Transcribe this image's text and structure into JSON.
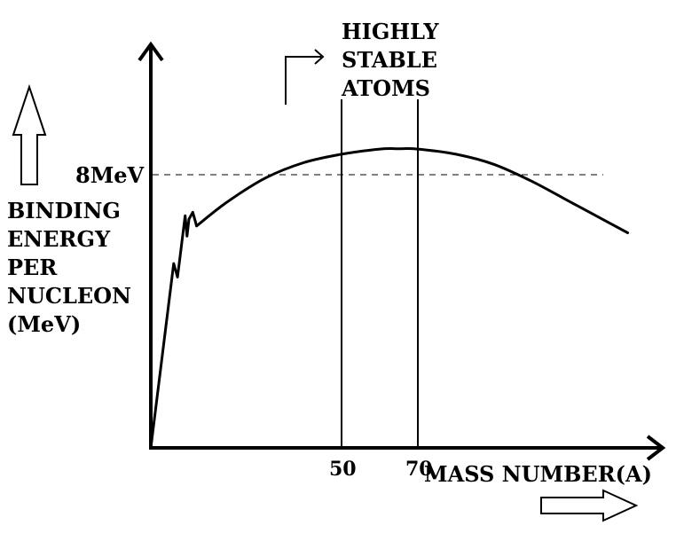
{
  "chart_data": {
    "type": "line",
    "xlabel": "MASS NUMBER(A)",
    "ylabel": [
      "BINDING",
      "ENERGY",
      "PER",
      "NUCLEON",
      "(MeV)"
    ],
    "reference_line": {
      "y": 8,
      "label": "8MeV",
      "style": "dashed"
    },
    "vertical_markers": [
      {
        "x": 50,
        "label": "50"
      },
      {
        "x": 70,
        "label": "70"
      }
    ],
    "annotation": [
      "HIGHLY",
      "STABLE",
      "ATOMS"
    ],
    "xlim": [
      0,
      130
    ],
    "ylim": [
      0,
      11.6
    ],
    "series": [
      {
        "x": [
          0,
          6,
          7,
          8,
          9,
          9.5,
          10,
          11,
          12
        ],
        "y": [
          0,
          5.4,
          5.0,
          5.9,
          6.8,
          6.2,
          6.7,
          6.9,
          6.5
        ],
        "smooth": false
      },
      {
        "x": [
          12,
          20,
          30,
          40,
          50,
          60,
          65,
          70,
          80,
          90,
          100,
          110,
          120,
          125
        ],
        "y": [
          6.5,
          7.2,
          7.9,
          8.35,
          8.6,
          8.75,
          8.76,
          8.75,
          8.6,
          8.3,
          7.8,
          7.2,
          6.6,
          6.3
        ],
        "smooth": true
      }
    ],
    "grid": false,
    "legend": "none"
  },
  "colors": {
    "ink": "#000000",
    "background": "#ffffff"
  }
}
